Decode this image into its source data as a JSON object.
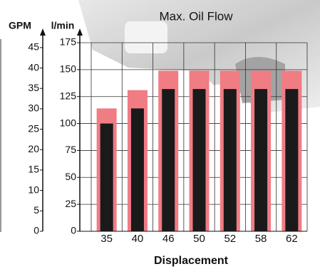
{
  "chart_data": {
    "type": "bar",
    "title": "Max. Oil Flow",
    "x_label": "Displacement",
    "y_label": "l/min",
    "y2_label": "GPM",
    "categories": [
      "35",
      "40",
      "46",
      "50",
      "52",
      "58",
      "62"
    ],
    "series": [
      {
        "color": "#f07c84",
        "values": [
          114,
          131,
          149,
          149,
          149,
          149,
          149
        ]
      },
      {
        "color": "#1a1a1a",
        "values": [
          100,
          114,
          132,
          132,
          132,
          132,
          132
        ]
      }
    ],
    "ylim": [
      0,
      175
    ],
    "yticks": [
      0,
      25,
      50,
      75,
      100,
      125,
      150,
      175
    ],
    "y2lim": [
      0,
      46.2
    ],
    "y2ticks": [
      0,
      5,
      10,
      15,
      20,
      25,
      30,
      35,
      40,
      45
    ],
    "grid": true
  }
}
